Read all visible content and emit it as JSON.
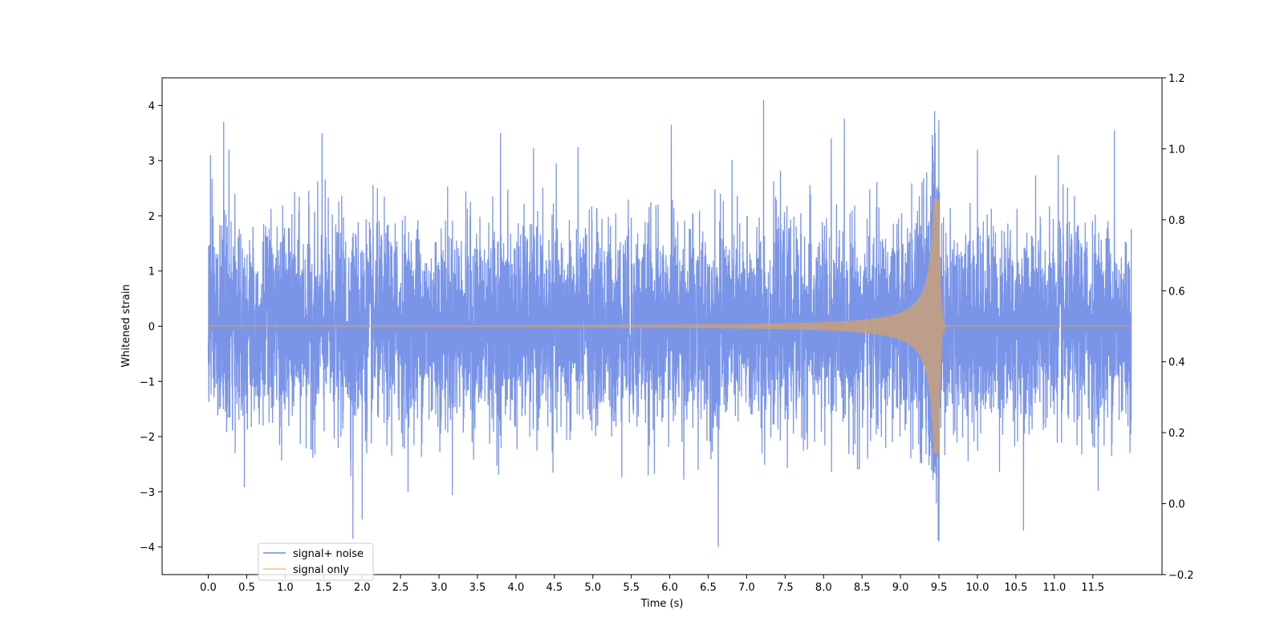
{
  "chart_data": {
    "type": "line",
    "title": "",
    "xlabel": "Time (s)",
    "ylabel": "Whitened strain",
    "y2label": "",
    "xlim": [
      -0.6,
      12.4
    ],
    "ylim": [
      -4.5,
      4.5
    ],
    "y2lim": [
      -0.2,
      1.2
    ],
    "x_ticks": [
      0.0,
      0.5,
      1.0,
      1.5,
      2.0,
      2.5,
      3.0,
      3.5,
      4.0,
      4.5,
      5.0,
      5.5,
      6.0,
      6.5,
      7.0,
      7.5,
      8.0,
      8.5,
      9.0,
      9.5,
      10.0,
      10.5,
      11.0,
      11.5
    ],
    "x_tick_labels": [
      "0.0",
      "0.5",
      "1.0",
      "1.5",
      "2.0",
      "2.5",
      "3.0",
      "3.5",
      "4.0",
      "4.5",
      "5.0",
      "5.5",
      "6.0",
      "6.5",
      "7.0",
      "7.5",
      "8.0",
      "8.5",
      "9.0",
      "9.5",
      "10.0",
      "10.5",
      "11.0",
      "11.5"
    ],
    "y_ticks": [
      -4,
      -3,
      -2,
      -1,
      0,
      1,
      2,
      3,
      4
    ],
    "y_tick_labels": [
      "−4",
      "−3",
      "−2",
      "−1",
      "0",
      "1",
      "2",
      "3",
      "4"
    ],
    "y2_ticks": [
      -0.2,
      0.0,
      0.2,
      0.4,
      0.6,
      0.8,
      1.0,
      1.2
    ],
    "y2_tick_labels": [
      "−0.2",
      "0.0",
      "0.2",
      "0.4",
      "0.6",
      "0.8",
      "1.0",
      "1.2"
    ],
    "grid": false,
    "legend_position": "lower-left",
    "series": [
      {
        "name": "signal+ noise",
        "color": "#6c8ae4",
        "x_range": [
          0.0,
          12.0
        ],
        "noise_sigma": 0.9,
        "peak_min": -4.0,
        "peak_max": 4.1,
        "peaks": [
          [
            0.03,
            3.1
          ],
          [
            0.2,
            3.7
          ],
          [
            0.27,
            3.2
          ],
          [
            1.88,
            -3.85
          ],
          [
            2.0,
            -3.5
          ],
          [
            3.8,
            3.5
          ],
          [
            6.63,
            -4.0
          ],
          [
            7.22,
            4.1
          ],
          [
            9.45,
            3.5
          ],
          [
            9.5,
            -3.9
          ],
          [
            10.0,
            3.2
          ],
          [
            11.78,
            3.55
          ],
          [
            11.05,
            3.1
          ],
          [
            10.6,
            -3.7
          ],
          [
            1.48,
            3.5
          ],
          [
            6.02,
            3.65
          ],
          [
            8.1,
            3.4
          ]
        ]
      },
      {
        "name": "signal only",
        "color": "#f2a540",
        "x_range": [
          0.0,
          12.0
        ],
        "merger_time": 9.5,
        "peak_amplitude": 2.3,
        "min_value": -3.0,
        "envelope_at_5s": 0.06,
        "envelope_at_8s": 0.25,
        "envelope_at_9s": 0.55,
        "ringdown_end": 9.58
      }
    ]
  }
}
